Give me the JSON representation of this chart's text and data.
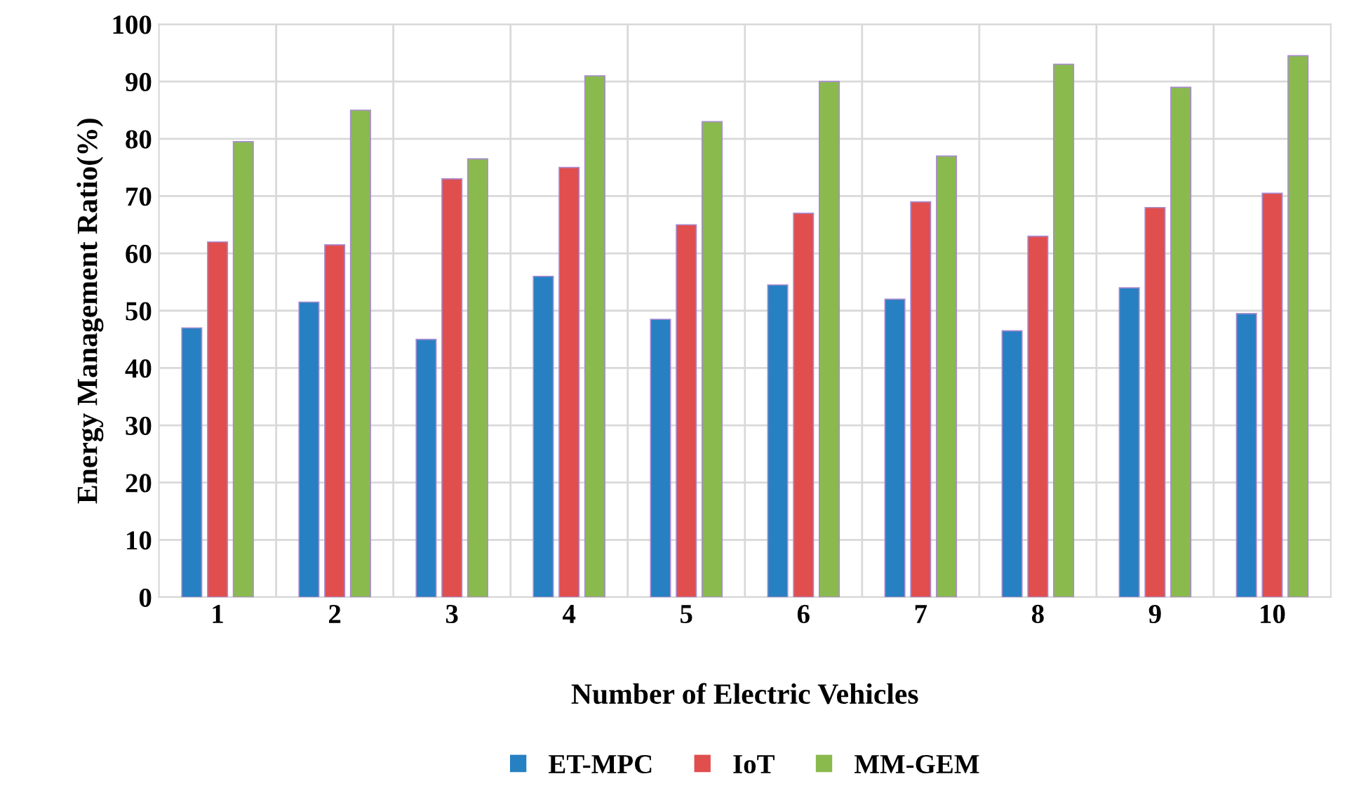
{
  "chart_data": {
    "type": "bar",
    "xlabel": "Number of Electric Vehicles",
    "ylabel": "Energy Management Ratio(%)",
    "categories": [
      "1",
      "2",
      "3",
      "4",
      "5",
      "6",
      "7",
      "8",
      "9",
      "10"
    ],
    "series": [
      {
        "name": "ET-MPC",
        "color": "#2680c2",
        "values": [
          47,
          51.5,
          45,
          56,
          48.5,
          54.5,
          52,
          46.5,
          54,
          49.5
        ]
      },
      {
        "name": "IoT",
        "color": "#e04e4e",
        "values": [
          62,
          61.5,
          73,
          75,
          65,
          67,
          69,
          63,
          68,
          70.5
        ]
      },
      {
        "name": "MM-GEM",
        "color": "#8aba4e",
        "values": [
          79.5,
          85,
          76.5,
          91,
          83,
          90,
          77,
          93,
          89,
          94.5
        ]
      }
    ],
    "ylim": [
      0,
      100
    ],
    "yticks": [
      0,
      10,
      20,
      30,
      40,
      50,
      60,
      70,
      80,
      90,
      100
    ],
    "grid": true,
    "legend": "bottom"
  }
}
